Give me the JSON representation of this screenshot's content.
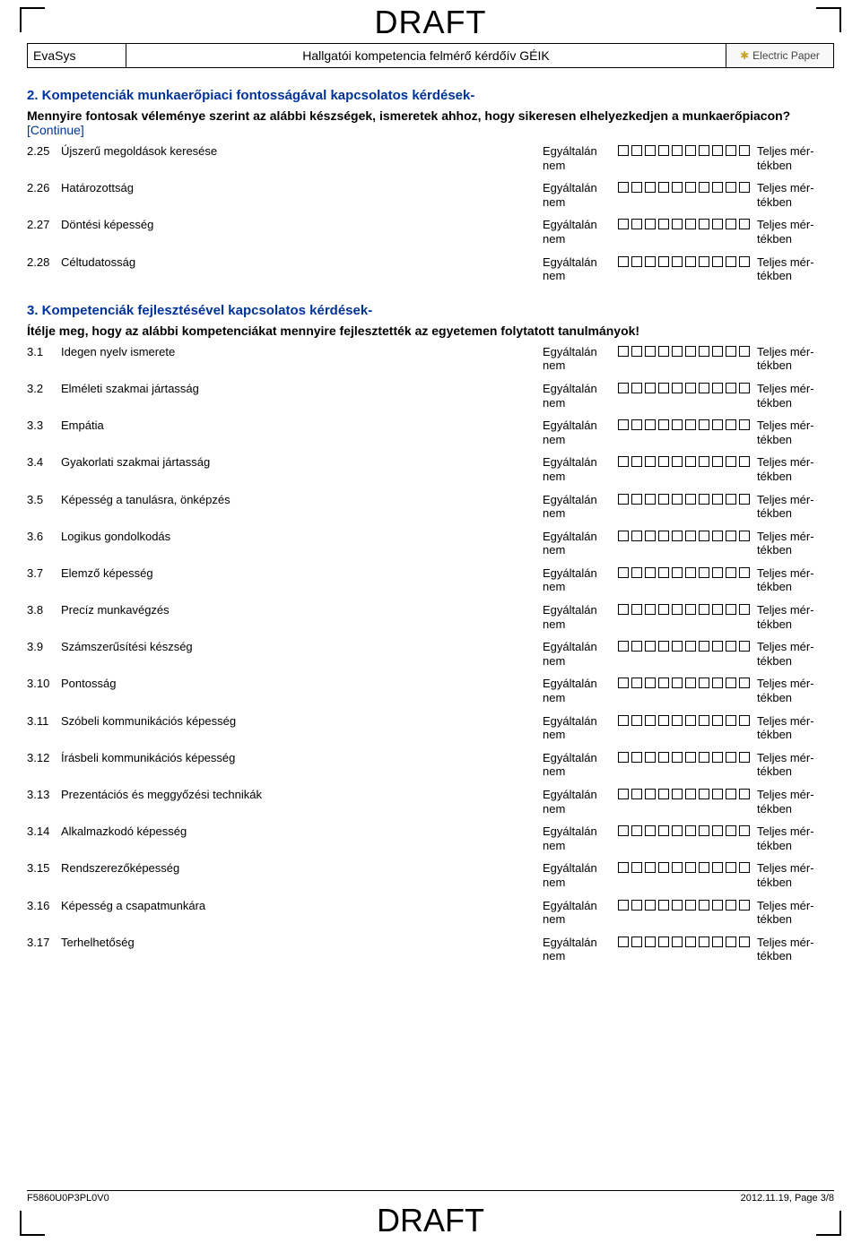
{
  "draft_label": "DRAFT",
  "header": {
    "system": "EvaSys",
    "title": "Hallgatói kompetencia felmérő kérdőív GÉIK",
    "brand": "Electric Paper"
  },
  "section2": {
    "title": "2. Kompetenciák munkaerőpiaci fontosságával kapcsolatos kérdések-",
    "intro": "Mennyire fontosak véleménye szerint az alábbi készségek, ismeretek ahhoz, hogy sikeresen elhelyezkedjen a munkaerőpiacon?",
    "continue": "[Continue]",
    "items": [
      {
        "num": "2.25",
        "label": "Újszerű megoldások keresése"
      },
      {
        "num": "2.26",
        "label": "Határozottság"
      },
      {
        "num": "2.27",
        "label": "Döntési képesség"
      },
      {
        "num": "2.28",
        "label": "Céltudatosság"
      }
    ]
  },
  "section3": {
    "title": "3. Kompetenciák fejlesztésével kapcsolatos kérdések-",
    "intro": "Ítélje meg, hogy az alábbi kompetenciákat mennyire fejlesztették az egyetemen folytatott tanulmányok!",
    "items": [
      {
        "num": "3.1",
        "label": "Idegen nyelv ismerete"
      },
      {
        "num": "3.2",
        "label": "Elméleti szakmai jártasság"
      },
      {
        "num": "3.3",
        "label": "Empátia"
      },
      {
        "num": "3.4",
        "label": "Gyakorlati szakmai jártasság"
      },
      {
        "num": "3.5",
        "label": "Képesség a tanulásra, önképzés"
      },
      {
        "num": "3.6",
        "label": "Logikus gondolkodás"
      },
      {
        "num": "3.7",
        "label": "Elemző képesség"
      },
      {
        "num": "3.8",
        "label": "Precíz munkavégzés"
      },
      {
        "num": "3.9",
        "label": "Számszerűsítési készség"
      },
      {
        "num": "3.10",
        "label": "Pontosság"
      },
      {
        "num": "3.11",
        "label": "Szóbeli kommunikációs képesség"
      },
      {
        "num": "3.12",
        "label": "Írásbeli kommunikációs képesség"
      },
      {
        "num": "3.13",
        "label": "Prezentációs és meggyőzési technikák"
      },
      {
        "num": "3.14",
        "label": "Alkalmazkodó képesség"
      },
      {
        "num": "3.15",
        "label": "Rendszerezőképesség"
      },
      {
        "num": "3.16",
        "label": "Képesség a csapatmunkára"
      },
      {
        "num": "3.17",
        "label": "Terhelhetőség"
      }
    ]
  },
  "scale": {
    "left_line1": "Egyáltalán",
    "left_line2": "nem",
    "right_line1": "Teljes mér-",
    "right_line2": "tékben",
    "box_count": 10
  },
  "footer": {
    "code": "F5860U0P3PL0V0",
    "pageinfo": "2012.11.19, Page 3/8"
  }
}
